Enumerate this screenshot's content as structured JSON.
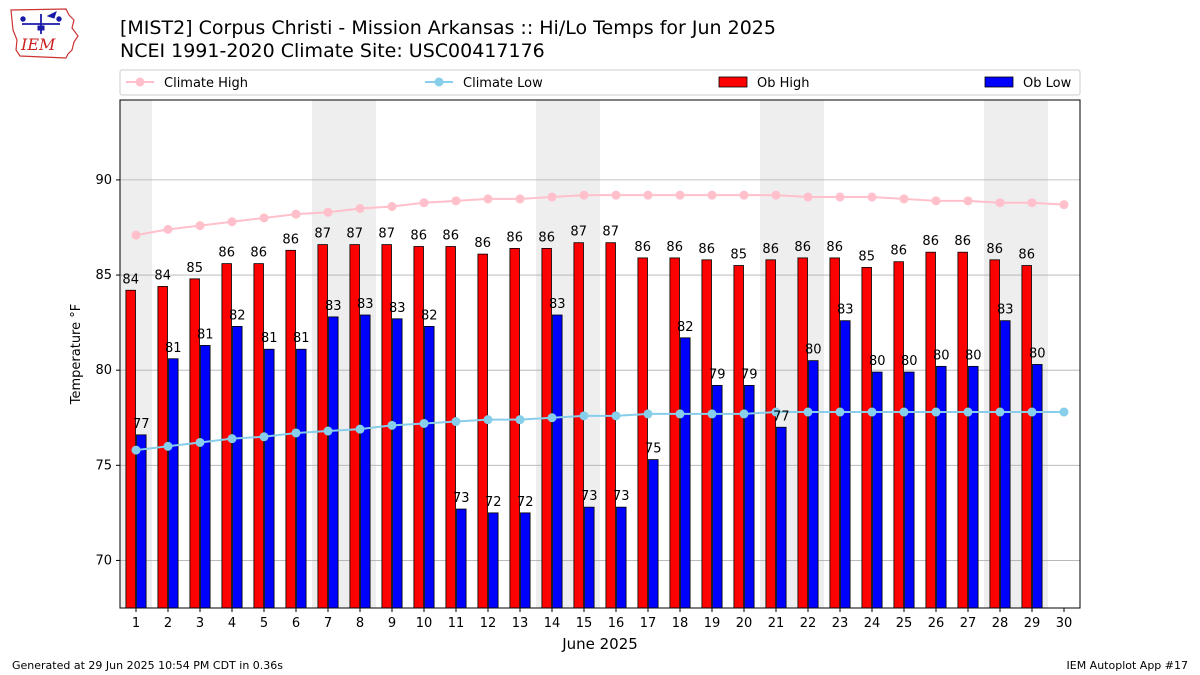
{
  "header": {
    "title_line1": "[MIST2] Corpus Christi - Mission Arkansas :: Hi/Lo Temps for Jun 2025",
    "title_line2": "NCEI 1991-2020 Climate Site: USC00417176",
    "logo_text": "IEM",
    "logo_icon": "iowa-state-logo-icon"
  },
  "footer": {
    "left": "Generated at 29 Jun 2025 10:54 PM CDT in 0.36s",
    "right": "IEM Autoplot App #17"
  },
  "colors": {
    "ob_high": "#ff0000",
    "ob_low": "#0000ff",
    "climate_high": "#ffc0cb",
    "climate_low": "#87ceeb",
    "weekend_shade": "#eeeeee",
    "grid": "#b0b0b0"
  },
  "chart_data": {
    "type": "bar",
    "xlabel": "June 2025",
    "ylabel": "Temperature °F",
    "ylim": [
      67.5,
      94.2
    ],
    "yticks": [
      70,
      75,
      80,
      85,
      90
    ],
    "grid": "horizontal",
    "legend_position": "top",
    "x": [
      1,
      2,
      3,
      4,
      5,
      6,
      7,
      8,
      9,
      10,
      11,
      12,
      13,
      14,
      15,
      16,
      17,
      18,
      19,
      20,
      21,
      22,
      23,
      24,
      25,
      26,
      27,
      28,
      29,
      30
    ],
    "weekend_days": [
      1,
      7,
      8,
      14,
      15,
      21,
      22,
      28,
      29
    ],
    "series": [
      {
        "name": "Climate High",
        "kind": "line",
        "values": [
          87.1,
          87.4,
          87.6,
          87.8,
          88.0,
          88.2,
          88.3,
          88.5,
          88.6,
          88.8,
          88.9,
          89.0,
          89.0,
          89.1,
          89.2,
          89.2,
          89.2,
          89.2,
          89.2,
          89.2,
          89.2,
          89.1,
          89.1,
          89.1,
          89.0,
          88.9,
          88.9,
          88.8,
          88.8,
          88.7
        ]
      },
      {
        "name": "Climate Low",
        "kind": "line",
        "values": [
          75.8,
          76.0,
          76.2,
          76.4,
          76.5,
          76.7,
          76.8,
          76.9,
          77.1,
          77.2,
          77.3,
          77.4,
          77.4,
          77.5,
          77.6,
          77.6,
          77.7,
          77.7,
          77.7,
          77.7,
          77.8,
          77.8,
          77.8,
          77.8,
          77.8,
          77.8,
          77.8,
          77.8,
          77.8,
          77.8
        ]
      },
      {
        "name": "Ob High",
        "kind": "bar",
        "values": [
          84.2,
          84.4,
          84.8,
          85.6,
          85.6,
          86.3,
          86.6,
          86.6,
          86.6,
          86.5,
          86.5,
          86.1,
          86.4,
          86.4,
          86.7,
          86.7,
          85.9,
          85.9,
          85.8,
          85.5,
          85.8,
          85.9,
          85.9,
          85.4,
          85.7,
          86.2,
          86.2,
          85.8,
          85.5,
          null
        ],
        "labels": [
          "84",
          "84",
          "85",
          "86",
          "86",
          "86",
          "87",
          "87",
          "87",
          "86",
          "86",
          "86",
          "86",
          "86",
          "87",
          "87",
          "86",
          "86",
          "86",
          "85",
          "86",
          "86",
          "86",
          "85",
          "86",
          "86",
          "86",
          "86",
          "86",
          ""
        ]
      },
      {
        "name": "Ob Low",
        "kind": "bar",
        "values": [
          76.6,
          80.6,
          81.3,
          82.3,
          81.1,
          81.1,
          82.8,
          82.9,
          82.7,
          82.3,
          72.7,
          72.5,
          72.5,
          82.9,
          72.8,
          72.8,
          75.3,
          81.7,
          79.2,
          79.2,
          77.0,
          80.5,
          82.6,
          79.9,
          79.9,
          80.2,
          80.2,
          82.6,
          80.3,
          null
        ],
        "labels": [
          "77",
          "81",
          "81",
          "82",
          "81",
          "81",
          "83",
          "83",
          "83",
          "82",
          "73",
          "72",
          "72",
          "83",
          "73",
          "73",
          "75",
          "82",
          "79",
          "79",
          "77",
          "80",
          "83",
          "80",
          "80",
          "80",
          "80",
          "83",
          "80",
          ""
        ]
      }
    ]
  }
}
